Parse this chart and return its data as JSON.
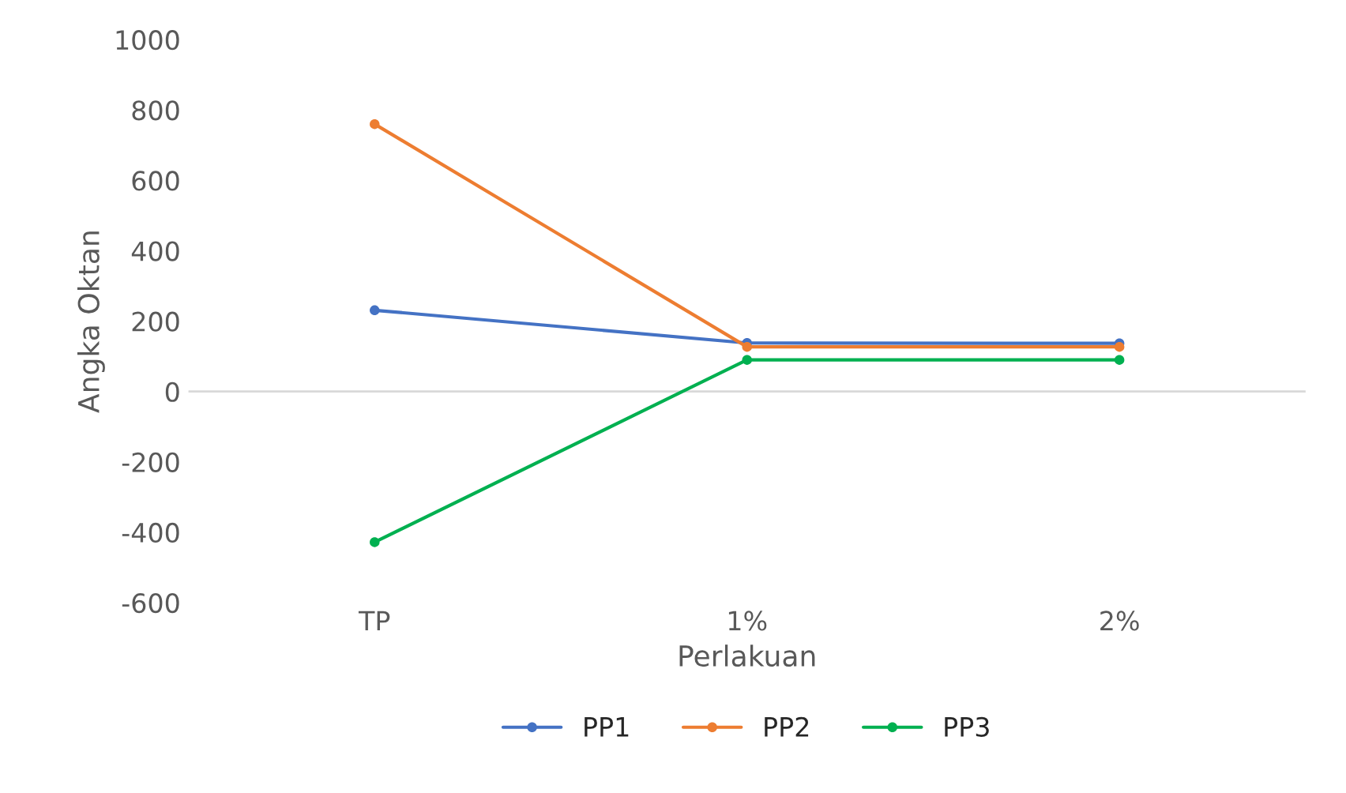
{
  "chart_data": {
    "type": "line",
    "xlabel": "Perlakuan",
    "ylabel": "Angka Oktan",
    "categories": [
      "TP",
      "1%",
      "2%"
    ],
    "series": [
      {
        "name": "PP1",
        "color": "#4472c4",
        "values": [
          231,
          138,
          137
        ]
      },
      {
        "name": "PP2",
        "color": "#ed7d31",
        "values": [
          760,
          127,
          127
        ]
      },
      {
        "name": "PP3",
        "color": "#00b050",
        "values": [
          -428,
          90,
          90
        ]
      }
    ],
    "ylim": [
      -600,
      1000
    ],
    "yticks": [
      -600,
      -400,
      -200,
      0,
      200,
      400,
      600,
      800,
      1000
    ],
    "ref_lines": [
      {
        "axis": "y",
        "value": 0,
        "color": "#d9d9d9"
      }
    ],
    "grid": false,
    "legend": "bottom",
    "marker": "circle",
    "line_style": "solid"
  }
}
